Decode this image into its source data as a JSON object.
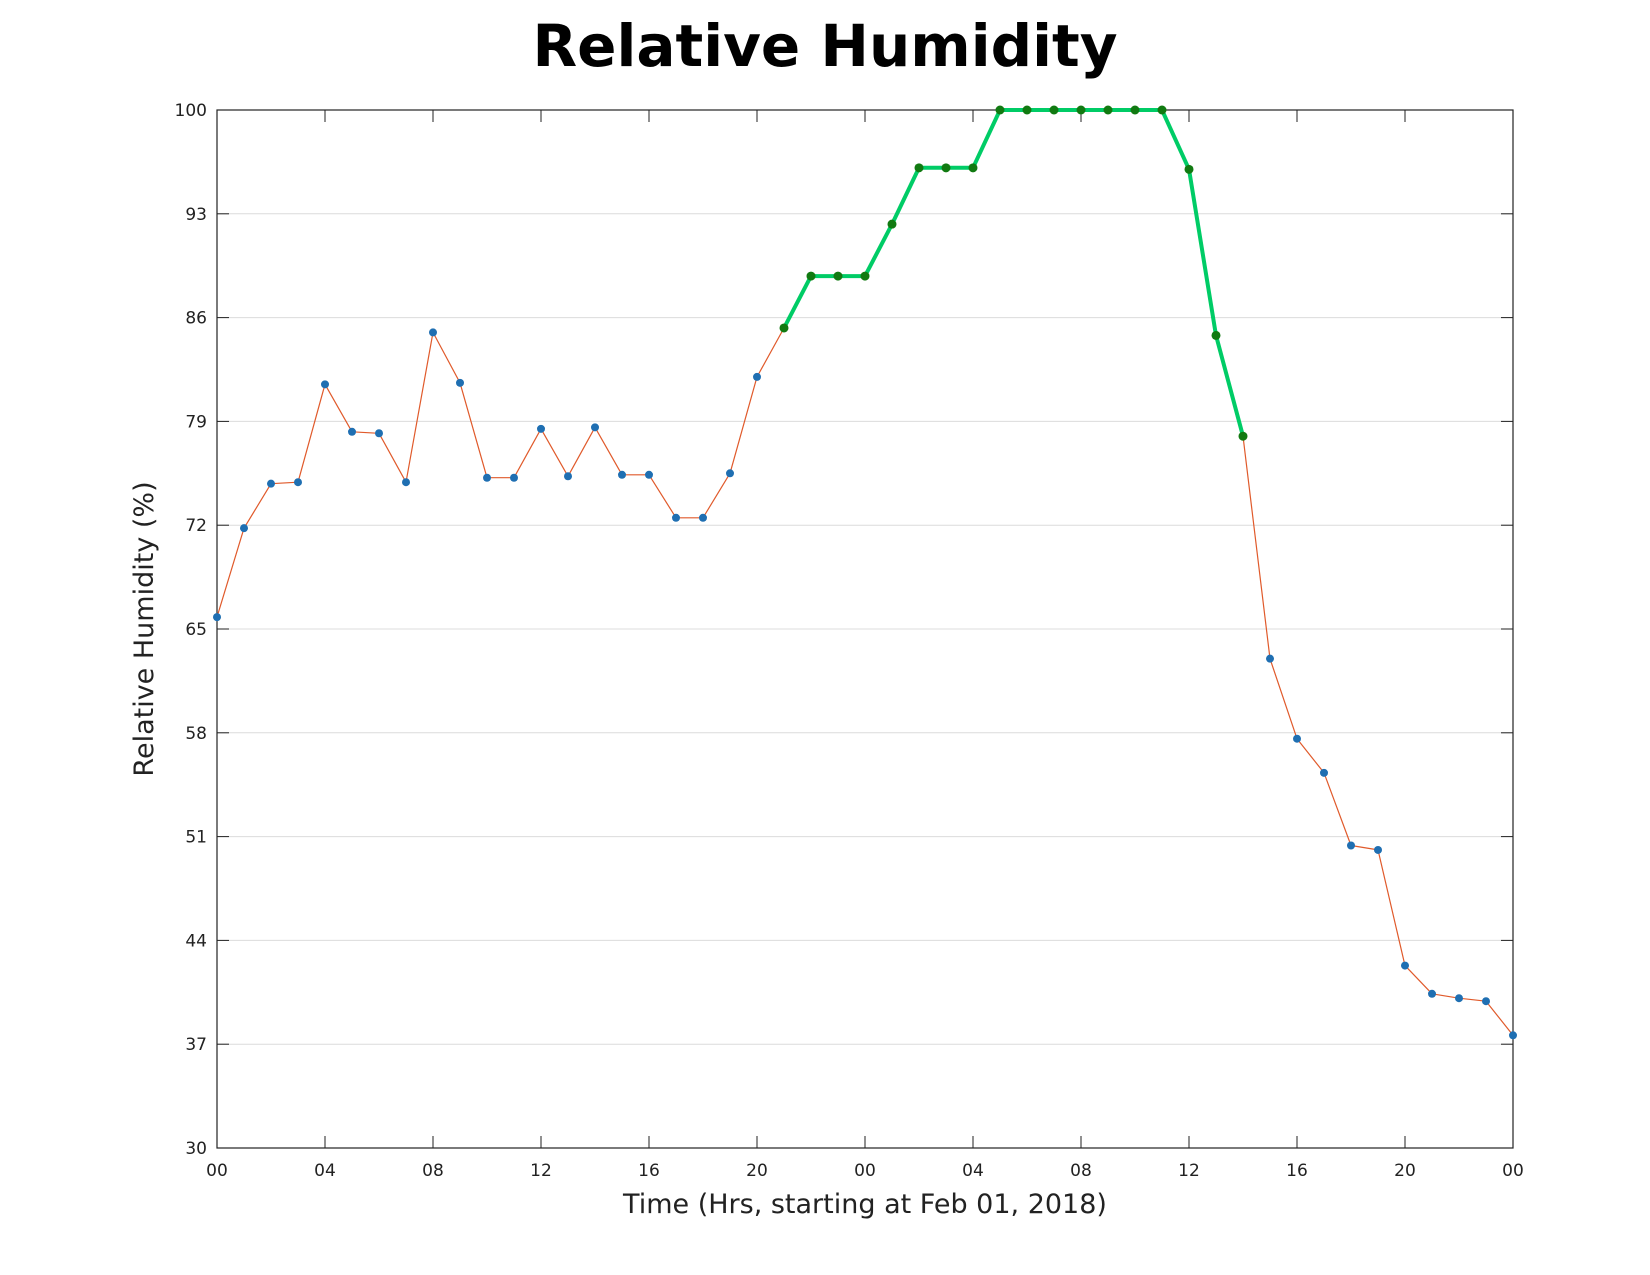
{
  "chart_data": {
    "type": "line",
    "title": "Relative Humidity",
    "xlabel": "Time (Hrs, starting at Feb 01, 2018)",
    "ylabel": "Relative Humidity (%)",
    "ylim": [
      30,
      100
    ],
    "y_ticks": [
      30,
      37,
      44,
      51,
      58,
      65,
      72,
      79,
      86,
      93,
      100
    ],
    "x_tick_labels": [
      "00",
      "04",
      "08",
      "12",
      "16",
      "20",
      "00",
      "04",
      "08",
      "12",
      "16",
      "20",
      "00"
    ],
    "x_tick_hours": [
      0,
      4,
      8,
      12,
      16,
      20,
      24,
      28,
      32,
      36,
      40,
      44,
      48
    ],
    "xlim": [
      0,
      48
    ],
    "grid": "horizontal",
    "colors": {
      "line": "#e05a2b",
      "marker": "#1f6fb2",
      "highlight_line": "#00cc66",
      "highlight_marker": "#117a11"
    },
    "series": [
      {
        "x": [
          0,
          1,
          2,
          3,
          4,
          5,
          6,
          7,
          8,
          9,
          10,
          11,
          12,
          13,
          14,
          15,
          16,
          17,
          18,
          19,
          20,
          21,
          22,
          23,
          24,
          25,
          26,
          27,
          28,
          29,
          30,
          31,
          32,
          33,
          34,
          35,
          36,
          37,
          38,
          39,
          40,
          41,
          42,
          43,
          44,
          45,
          46,
          47,
          48
        ],
        "values": [
          65.8,
          71.8,
          74.8,
          74.9,
          81.5,
          78.3,
          78.2,
          74.9,
          85.0,
          81.6,
          75.2,
          75.2,
          78.5,
          75.3,
          78.6,
          75.4,
          75.4,
          72.5,
          72.5,
          75.5,
          82.0,
          85.3,
          88.8,
          88.8,
          88.8,
          92.3,
          96.1,
          96.1,
          96.1,
          100.0,
          100.0,
          100.0,
          100.0,
          100.0,
          100.0,
          100.0,
          96.0,
          84.8,
          78.0,
          63.0,
          57.6,
          55.3,
          50.4,
          50.1,
          42.3,
          40.4,
          40.1,
          39.9,
          37.6
        ]
      },
      {
        "x": [
          21,
          22,
          23,
          24,
          25,
          26,
          27,
          28,
          29,
          30,
          31,
          32,
          33,
          34,
          35,
          36,
          37,
          38
        ],
        "values": [
          85.3,
          88.8,
          88.8,
          88.8,
          92.3,
          96.1,
          96.1,
          96.1,
          100.0,
          100.0,
          100.0,
          100.0,
          100.0,
          100.0,
          100.0,
          96.0,
          84.8,
          78.0
        ]
      }
    ]
  }
}
